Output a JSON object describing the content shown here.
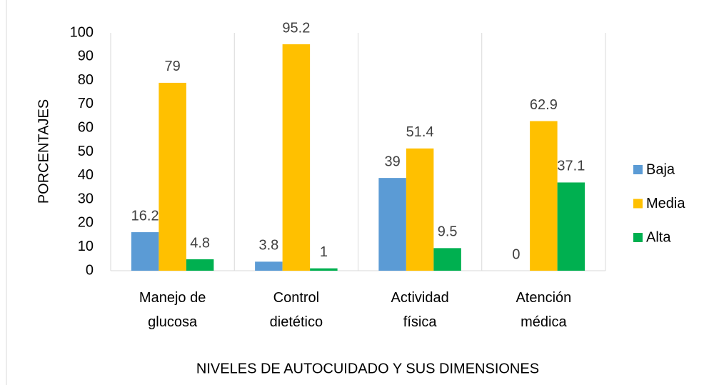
{
  "chart_data": {
    "type": "bar",
    "categories": [
      [
        "Manejo de",
        "glucosa"
      ],
      [
        "Control",
        "dietético"
      ],
      [
        "Actividad",
        "física"
      ],
      [
        "Atención",
        "médica"
      ]
    ],
    "series": [
      {
        "name": "Baja",
        "color": "#5b9bd5",
        "values": [
          16.2,
          3.8,
          39,
          0
        ]
      },
      {
        "name": "Media",
        "color": "#ffc000",
        "values": [
          79,
          95.2,
          51.4,
          62.9
        ]
      },
      {
        "name": "Alta",
        "color": "#00b050",
        "values": [
          4.8,
          1,
          9.5,
          37.1
        ]
      }
    ],
    "y_label": "PORCENTAJES",
    "x_label": "NIVELES DE AUTOCUIDADO Y SUS DIMENSIONES",
    "ylim": [
      0,
      100
    ],
    "yticks": [
      0,
      10,
      20,
      30,
      40,
      50,
      60,
      70,
      80,
      90,
      100
    ],
    "legend": "right"
  }
}
